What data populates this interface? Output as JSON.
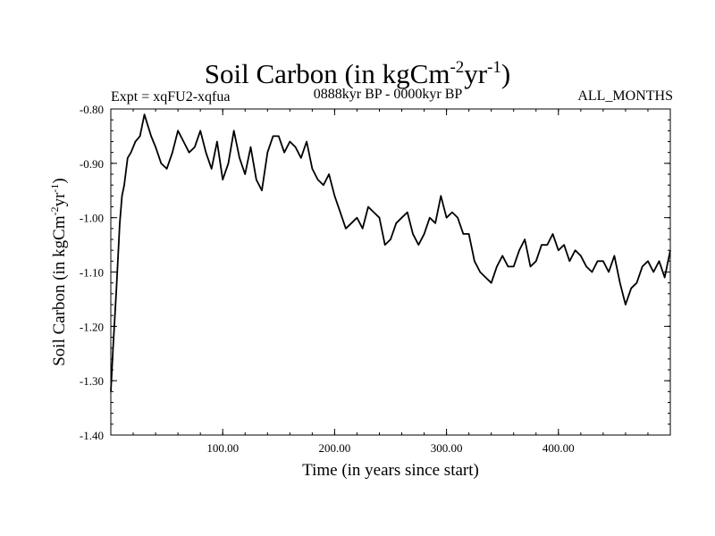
{
  "header": {
    "title_main": "Soil Carbon (in kgCm",
    "title_exp1": "-2",
    "title_mid": "yr",
    "title_exp2": "-1",
    "title_close": ")",
    "expt": "Expt = xqFU2-xqfua",
    "period": "0888kyr BP - 0000kyr BP",
    "months": "ALL_MONTHS"
  },
  "chart_data": {
    "type": "line",
    "title": "Soil Carbon (in kgCm-2yr-1)",
    "xlabel": "Time (in years since start)",
    "ylabel_main": "Soil Carbon (in kgCm",
    "ylabel_exp1": "-2",
    "ylabel_mid": "yr",
    "ylabel_exp2": "-1",
    "ylabel_close": ")",
    "xlim": [
      0,
      500
    ],
    "ylim": [
      -1.4,
      -0.8
    ],
    "xticks": [
      100,
      200,
      300,
      400
    ],
    "xtick_labels": [
      "100.00",
      "200.00",
      "300.00",
      "400.00"
    ],
    "yticks": [
      -1.4,
      -1.3,
      -1.2,
      -1.1,
      -1.0,
      -0.9,
      -0.8
    ],
    "ytick_labels": [
      "-1.40",
      "-1.30",
      "-1.20",
      "-1.10",
      "-1.00",
      "-0.90",
      "-0.80"
    ],
    "series": [
      {
        "name": "Soil Carbon",
        "color": "#000000",
        "x": [
          0,
          2,
          5,
          8,
          10,
          12,
          15,
          18,
          22,
          26,
          30,
          33,
          36,
          40,
          45,
          50,
          55,
          60,
          65,
          70,
          75,
          80,
          85,
          90,
          95,
          100,
          105,
          110,
          115,
          120,
          125,
          130,
          135,
          140,
          145,
          150,
          155,
          160,
          165,
          170,
          175,
          180,
          185,
          190,
          195,
          200,
          205,
          210,
          215,
          220,
          225,
          230,
          235,
          240,
          245,
          250,
          255,
          260,
          265,
          270,
          275,
          280,
          285,
          290,
          295,
          300,
          305,
          310,
          315,
          320,
          325,
          330,
          335,
          340,
          345,
          350,
          355,
          360,
          365,
          370,
          375,
          380,
          385,
          390,
          395,
          400,
          405,
          410,
          415,
          420,
          425,
          430,
          435,
          440,
          445,
          450,
          455,
          460,
          465,
          470,
          475,
          480,
          485,
          490,
          495,
          500
        ],
        "y": [
          -1.32,
          -1.24,
          -1.13,
          -1.01,
          -0.96,
          -0.94,
          -0.89,
          -0.88,
          -0.86,
          -0.85,
          -0.81,
          -0.83,
          -0.85,
          -0.87,
          -0.9,
          -0.91,
          -0.88,
          -0.84,
          -0.86,
          -0.88,
          -0.87,
          -0.84,
          -0.88,
          -0.91,
          -0.86,
          -0.93,
          -0.9,
          -0.84,
          -0.89,
          -0.92,
          -0.87,
          -0.93,
          -0.95,
          -0.88,
          -0.85,
          -0.85,
          -0.88,
          -0.86,
          -0.87,
          -0.89,
          -0.86,
          -0.91,
          -0.93,
          -0.94,
          -0.92,
          -0.96,
          -0.99,
          -1.02,
          -1.01,
          -1.0,
          -1.02,
          -0.98,
          -0.99,
          -1.0,
          -1.05,
          -1.04,
          -1.01,
          -1.0,
          -0.99,
          -1.03,
          -1.05,
          -1.03,
          -1.0,
          -1.01,
          -0.96,
          -1.0,
          -0.99,
          -1.0,
          -1.03,
          -1.03,
          -1.08,
          -1.1,
          -1.11,
          -1.12,
          -1.09,
          -1.07,
          -1.09,
          -1.09,
          -1.06,
          -1.04,
          -1.09,
          -1.08,
          -1.05,
          -1.05,
          -1.03,
          -1.06,
          -1.05,
          -1.08,
          -1.06,
          -1.07,
          -1.09,
          -1.1,
          -1.08,
          -1.08,
          -1.1,
          -1.07,
          -1.12,
          -1.16,
          -1.13,
          -1.12,
          -1.09,
          -1.08,
          -1.1,
          -1.08,
          -1.11,
          -1.06
        ]
      }
    ]
  }
}
